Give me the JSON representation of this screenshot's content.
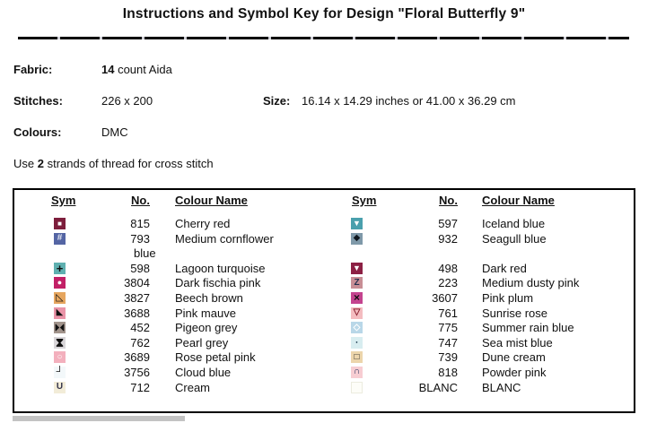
{
  "title": "Instructions and Symbol Key for Design \"Floral Butterfly 9\"",
  "meta": {
    "fabric_label": "Fabric:",
    "fabric_bold": "14",
    "fabric_rest": " count Aida",
    "stitches_label": "Stitches:",
    "stitches_value": "226 x 200",
    "size_label": "Size:",
    "size_value": "16.14 x 14.29 inches or 41.00 x 36.29 cm",
    "colours_label": "Colours:",
    "colours_value": "DMC",
    "strands_prefix": "Use ",
    "strands_bold": "2",
    "strands_suffix": " strands of thread for cross stitch"
  },
  "key_table": {
    "headers": {
      "sym": "Sym",
      "no": "No.",
      "name": "Colour Name"
    },
    "left_rows": [
      {
        "no": "815",
        "name": "Cherry red",
        "symbol": {
          "bg": "#7d1e3c",
          "glyph": "white-square",
          "color": "#ffffff"
        }
      },
      {
        "no": "793",
        "name": "Medium cornflower",
        "wrap": "blue",
        "symbol": {
          "bg": "#5465a4",
          "glyph": "hash",
          "color": "#e4e7f2"
        }
      },
      {
        "no": "598",
        "name": "Lagoon turquoise",
        "symbol": {
          "bg": "#5fb0b0",
          "glyph": "plus",
          "color": "#101010"
        }
      },
      {
        "no": "3804",
        "name": "Dark fischia pink",
        "symbol": {
          "bg": "#c22066",
          "glyph": "white-circle",
          "color": "#ffffff"
        }
      },
      {
        "no": "3827",
        "name": "Beech brown",
        "symbol": {
          "bg": "#e6a65f",
          "glyph": "tri-bl-outline",
          "color": "#101010"
        }
      },
      {
        "no": "3688",
        "name": "Pink mauve",
        "symbol": {
          "bg": "#ea94a8",
          "glyph": "tri-bl-filled",
          "color": "#101010"
        }
      },
      {
        "no": "452",
        "name": "Pigeon grey",
        "symbol": {
          "bg": "#a2948c",
          "glyph": "bowtie",
          "color": "#101010"
        }
      },
      {
        "no": "762",
        "name": "Pearl grey",
        "symbol": {
          "bg": "#d9d6d9",
          "glyph": "hourglass",
          "color": "#101010"
        }
      },
      {
        "no": "3689",
        "name": "Rose petal pink",
        "symbol": {
          "bg": "#f3b0bd",
          "glyph": "white-ring",
          "color": "#ffffff"
        }
      },
      {
        "no": "3756",
        "name": "Cloud blue",
        "symbol": {
          "bg": "#f3f8fa",
          "glyph": "corner-bl",
          "color": "#101010"
        }
      },
      {
        "no": "712",
        "name": "Cream",
        "symbol": {
          "bg": "#f2ecd8",
          "glyph": "letter-u",
          "color": "#33334a"
        }
      }
    ],
    "right_rows": [
      {
        "no": "597",
        "name": "Iceland blue",
        "symbol": {
          "bg": "#4aa0ad",
          "glyph": "white-tri-down",
          "color": "#ffffff"
        }
      },
      {
        "no": "932",
        "name": "Seagull blue",
        "symbol": {
          "bg": "#7f99a9",
          "glyph": "diamond-filled",
          "color": "#10181f"
        }
      },
      {
        "no": "498",
        "name": "Dark red",
        "symbol": {
          "bg": "#8c2044",
          "glyph": "white-tri-down",
          "color": "#ffffff"
        }
      },
      {
        "no": "223",
        "name": "Medium dusty pink",
        "symbol": {
          "bg": "#c88e95",
          "glyph": "letter-z",
          "color": "#26304e"
        }
      },
      {
        "no": "3607",
        "name": "Pink plum",
        "symbol": {
          "bg": "#c4448f",
          "glyph": "cross-x",
          "color": "#101010"
        }
      },
      {
        "no": "761",
        "name": "Sunrise rose",
        "symbol": {
          "bg": "#f4bcc0",
          "glyph": "tri-down-outline",
          "color": "#8a2030"
        }
      },
      {
        "no": "775",
        "name": "Summer rain blue",
        "symbol": {
          "bg": "#b9d7e8",
          "glyph": "diamond-outline",
          "color": "#ffffff"
        }
      },
      {
        "no": "747",
        "name": "Sea mist blue",
        "symbol": {
          "bg": "#d8edf0",
          "glyph": "small-dot",
          "color": "#1d3b4f"
        }
      },
      {
        "no": "739",
        "name": "Dune cream",
        "symbol": {
          "bg": "#ecd5ab",
          "glyph": "square-outline",
          "color": "#222222"
        }
      },
      {
        "no": "818",
        "name": "Powder pink",
        "symbol": {
          "bg": "#f7cdd2",
          "glyph": "cap",
          "color": "#24305e"
        }
      },
      {
        "no": "BLANC",
        "name": "BLANC",
        "symbol": {
          "bg": "#fdfdf8",
          "glyph": "none",
          "color": "#ffffff",
          "border": "#ececdf"
        }
      }
    ]
  }
}
